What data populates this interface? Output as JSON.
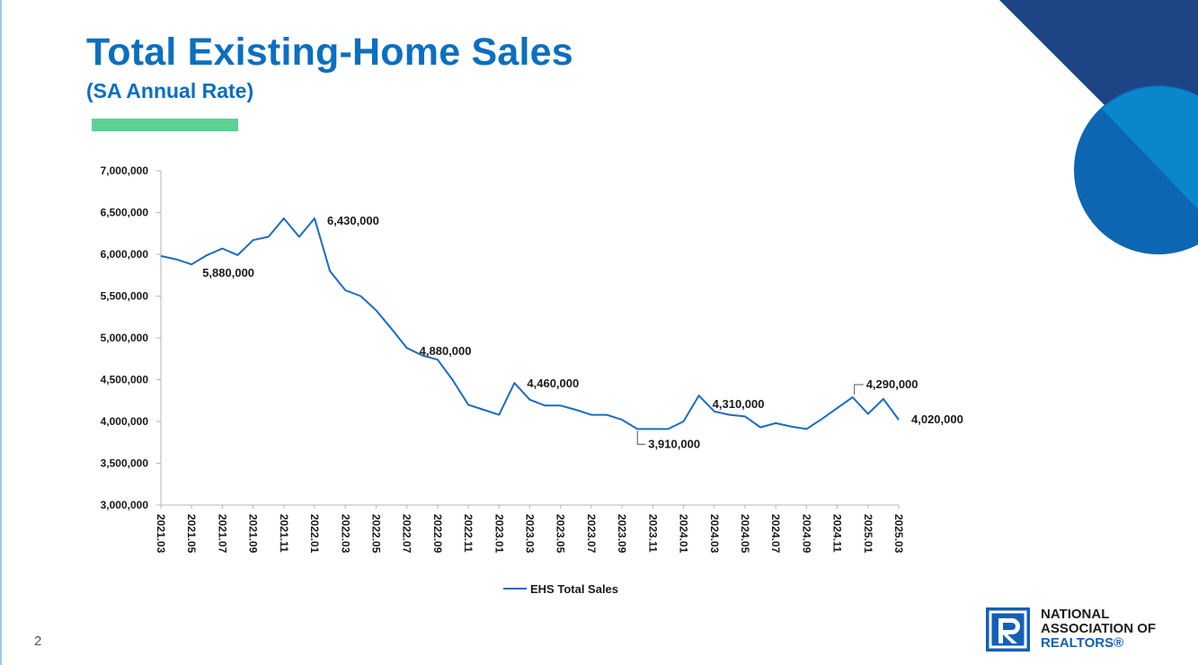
{
  "slide": {
    "title": "Total Existing-Home Sales",
    "subtitle": "(SA Annual Rate)",
    "page_number": "2",
    "colors": {
      "title": "#0b6fc1",
      "accent_bar": "#5ed095",
      "line": "#1a6cc4",
      "deco_dark": "#1d4585",
      "deco_light": "#0a86cd",
      "deco_mid": "#0d66b1"
    }
  },
  "logo": {
    "line1": "NATIONAL",
    "line2": "ASSOCIATION OF",
    "line3": "REALTORS®",
    "icon": "realtor-r-logo-icon"
  },
  "chart_data": {
    "type": "line",
    "title": "",
    "xlabel": "",
    "ylabel": "",
    "ylim": [
      3000000,
      7000000
    ],
    "yticks": [
      "3,000,000",
      "3,500,000",
      "4,000,000",
      "4,500,000",
      "5,000,000",
      "5,500,000",
      "6,000,000",
      "6,500,000",
      "7,000,000"
    ],
    "x_tick_labels": [
      "2021.03",
      "2021.05",
      "2021.07",
      "2021.09",
      "2021.11",
      "2022.01",
      "2022.03",
      "2022.05",
      "2022.07",
      "2022.09",
      "2022.11",
      "2023.01",
      "2023.03",
      "2023.05",
      "2023.07",
      "2023.09",
      "2023.11",
      "2024.01",
      "2024.03",
      "2024.05",
      "2024.07",
      "2024.09",
      "2024.11",
      "2025.01",
      "2025.03"
    ],
    "x": [
      "2021.03",
      "2021.04",
      "2021.05",
      "2021.06",
      "2021.07",
      "2021.08",
      "2021.09",
      "2021.10",
      "2021.11",
      "2021.12",
      "2022.01",
      "2022.02",
      "2022.03",
      "2022.04",
      "2022.05",
      "2022.06",
      "2022.07",
      "2022.08",
      "2022.09",
      "2022.10",
      "2022.11",
      "2022.12",
      "2023.01",
      "2023.02",
      "2023.03",
      "2023.04",
      "2023.05",
      "2023.06",
      "2023.07",
      "2023.08",
      "2023.09",
      "2023.10",
      "2023.11",
      "2023.12",
      "2024.01",
      "2024.02",
      "2024.03",
      "2024.04",
      "2024.05",
      "2024.06",
      "2024.07",
      "2024.08",
      "2024.09",
      "2024.10",
      "2024.11",
      "2024.12",
      "2025.01",
      "2025.02",
      "2025.03"
    ],
    "series": [
      {
        "name": "EHS Total Sales",
        "color": "#1a6cc4",
        "values": [
          5980000,
          5940000,
          5880000,
          5990000,
          6070000,
          5990000,
          6170000,
          6210000,
          6430000,
          6210000,
          6430000,
          5800000,
          5570000,
          5500000,
          5330000,
          5110000,
          4880000,
          4790000,
          4740000,
          4490000,
          4200000,
          4140000,
          4080000,
          4460000,
          4260000,
          4190000,
          4190000,
          4140000,
          4080000,
          4080000,
          4020000,
          3910000,
          3910000,
          3910000,
          4000000,
          4310000,
          4120000,
          4080000,
          4060000,
          3930000,
          3980000,
          3940000,
          3910000,
          4030000,
          4160000,
          4290000,
          4090000,
          4270000,
          4020000
        ]
      }
    ],
    "annotations": [
      {
        "x": "2021.05",
        "value": 5880000,
        "text": "5,880,000"
      },
      {
        "x": "2022.01",
        "value": 6430000,
        "text": "6,430,000"
      },
      {
        "x": "2022.07",
        "value": 4880000,
        "text": "4,880,000"
      },
      {
        "x": "2023.02",
        "value": 4460000,
        "text": "4,460,000"
      },
      {
        "x": "2023.10",
        "value": 3910000,
        "text": "3,910,000"
      },
      {
        "x": "2024.02",
        "value": 4310000,
        "text": "4,310,000"
      },
      {
        "x": "2024.12",
        "value": 4290000,
        "text": "4,290,000"
      },
      {
        "x": "2025.03",
        "value": 4020000,
        "text": "4,020,000"
      }
    ],
    "legend": {
      "position": "bottom",
      "entries": [
        "EHS Total Sales"
      ]
    },
    "grid": false
  }
}
